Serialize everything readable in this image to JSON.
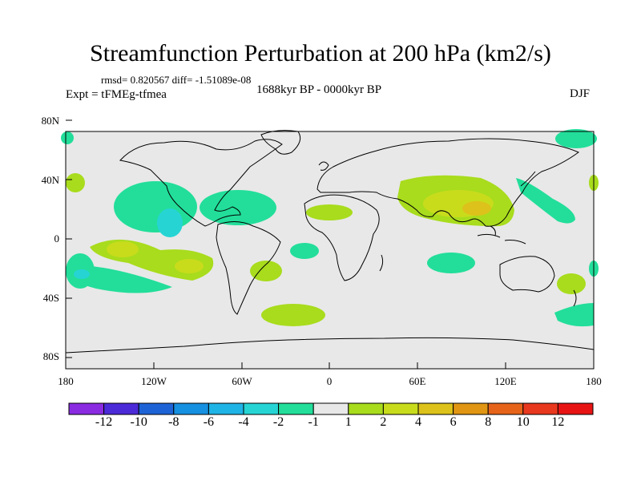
{
  "title": "Streamfunction Perturbation at 200 hPa (km2/s)",
  "stats": "rmsd= 0.820567 diff= -1.51089e-08",
  "experiment": "Expt = tFMEg-tfmea",
  "period": "1688kyr BP - 0000kyr BP",
  "season": "DJF",
  "lat_labels": [
    "80N",
    "40N",
    "0",
    "40S",
    "80S"
  ],
  "lon_labels": [
    "180",
    "120W",
    "60W",
    "0",
    "60E",
    "120E",
    "180"
  ],
  "colorbar": {
    "labels": [
      "-12",
      "-10",
      "-8",
      "-6",
      "-4",
      "-2",
      "-1",
      "1",
      "2",
      "4",
      "6",
      "8",
      "10",
      "12"
    ],
    "colors": [
      "#8a2be2",
      "#4b2ad8",
      "#1e63d6",
      "#1690e0",
      "#1fb4e6",
      "#26d4d4",
      "#22de9a",
      "#e8e8e8",
      "#a8dc1c",
      "#c8dc1c",
      "#dcc21a",
      "#e09612",
      "#e6641a",
      "#e8381e",
      "#e81414"
    ]
  },
  "colors": {
    "map_background": "#e8e8e8",
    "positive_1": "#a8dc1c",
    "positive_2": "#c8dc1c",
    "negative_1": "#22de9a",
    "negative_2": "#26d4d4",
    "negative_3": "#1fb4e6"
  }
}
